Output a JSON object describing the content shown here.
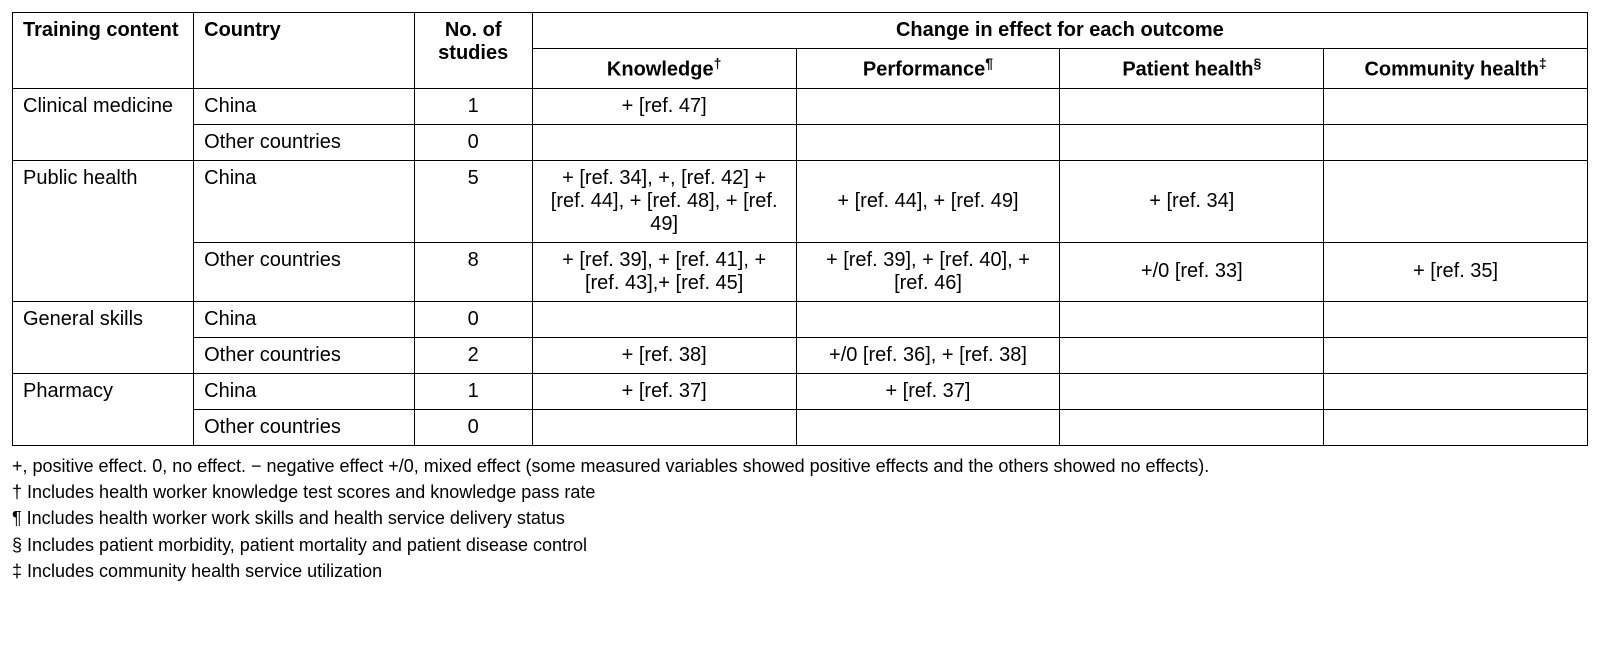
{
  "headers": {
    "training": "Training content",
    "country": "Country",
    "studies": "No. of studies",
    "change_header": "Change in effect for each outcome",
    "knowledge": "Knowledge",
    "knowledge_sym": "†",
    "performance": "Performance",
    "performance_sym": "¶",
    "patient": "Patient health",
    "patient_sym": "§",
    "community": "Community health",
    "community_sym": "‡"
  },
  "groups": [
    {
      "training": "Clinical medicine",
      "rows": [
        {
          "country": "China",
          "studies": "1",
          "knowledge": "+ [ref. 47]",
          "performance": "",
          "patient": "",
          "community": ""
        },
        {
          "country": "Other countries",
          "studies": "0",
          "knowledge": "",
          "performance": "",
          "patient": "",
          "community": ""
        }
      ]
    },
    {
      "training": "Public health",
      "rows": [
        {
          "country": "China",
          "studies": "5",
          "knowledge": "+ [ref. 34], +, [ref. 42] + [ref. 44], + [ref. 48], + [ref. 49]",
          "performance": "+ [ref. 44], + [ref. 49]",
          "patient": "+ [ref. 34]",
          "community": ""
        },
        {
          "country": "Other countries",
          "studies": "8",
          "knowledge": "+ [ref. 39], + [ref. 41], + [ref. 43],+ [ref. 45]",
          "performance": "+ [ref. 39], + [ref. 40], + [ref. 46]",
          "patient": "+/0 [ref. 33]",
          "community": "+ [ref. 35]"
        }
      ]
    },
    {
      "training": "General skills",
      "rows": [
        {
          "country": "China",
          "studies": "0",
          "knowledge": "",
          "performance": "",
          "patient": "",
          "community": ""
        },
        {
          "country": "Other countries",
          "studies": "2",
          "knowledge": "+ [ref. 38]",
          "performance": "+/0 [ref. 36], + [ref. 38]",
          "patient": "",
          "community": ""
        }
      ]
    },
    {
      "training": "Pharmacy",
      "rows": [
        {
          "country": "China",
          "studies": "1",
          "knowledge": "+ [ref. 37]",
          "performance": "+ [ref. 37]",
          "patient": "",
          "community": ""
        },
        {
          "country": "Other countries",
          "studies": "0",
          "knowledge": "",
          "performance": "",
          "patient": "",
          "community": ""
        }
      ]
    }
  ],
  "footnotes": {
    "legend": "+, positive effect. 0, no effect. − negative effect +/0, mixed effect (some measured variables showed positive effects and the others showed no effects).",
    "dagger": "† Includes health worker knowledge test scores and knowledge pass rate",
    "pilcrow": "¶ Includes health worker work skills and health service delivery status",
    "section": "§ Includes patient morbidity, patient mortality and patient disease control",
    "double_dagger": "‡ Includes community health service utilization"
  }
}
